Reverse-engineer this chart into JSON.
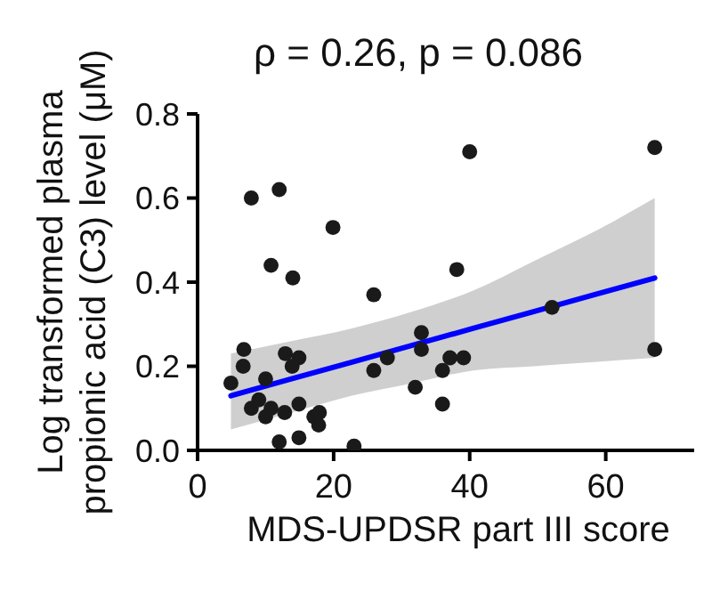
{
  "chart_data": {
    "type": "scatter",
    "title": "ρ = 0.26, p = 0.086",
    "xlabel": "MDS-UPDSR part III score",
    "ylabel": "Log transformed plasma propionic acid (C3) level (μM)",
    "xlim": [
      0,
      73
    ],
    "xticks": [
      0,
      20,
      40,
      60
    ],
    "ylim": [
      0,
      0.8
    ],
    "yticks": [
      {
        "value": 0,
        "label": "0.0"
      },
      {
        "value": 0.2,
        "label": "0.2"
      },
      {
        "value": 0.4,
        "label": "0.4"
      },
      {
        "value": 0.6,
        "label": "0.6"
      },
      {
        "value": 0.8,
        "label": "0.8"
      }
    ],
    "grid": false,
    "marker": "circle",
    "series": [
      {
        "color": "#1a1a1a",
        "x": [
          4.9,
          6.7,
          6.8,
          7.9,
          7.9,
          9.0,
          10.0,
          10.0,
          10.8,
          10.8,
          12.0,
          12.0,
          12.8,
          12.9,
          13.9,
          14.0,
          14.9,
          14.9,
          14.9,
          17.1,
          17.9,
          17.8,
          19.9,
          23.0,
          25.9,
          25.9,
          27.9,
          32.0,
          32.9,
          32.9,
          36.0,
          36.0,
          37.1,
          38.1,
          39.1,
          40.0,
          52.1,
          67.2,
          67.2
        ],
        "values": [
          0.16,
          0.2,
          0.24,
          0.6,
          0.1,
          0.12,
          0.17,
          0.08,
          0.44,
          0.1,
          0.62,
          0.02,
          0.09,
          0.23,
          0.2,
          0.41,
          0.22,
          0.11,
          0.03,
          0.08,
          0.09,
          0.06,
          0.53,
          0.01,
          0.37,
          0.19,
          0.22,
          0.15,
          0.28,
          0.24,
          0.19,
          0.11,
          0.22,
          0.43,
          0.22,
          0.71,
          0.34,
          0.72,
          0.24
        ]
      },
      {
        "type": "line",
        "color": "#0000ff",
        "marker": "none",
        "line_style": "solid",
        "x": [
          4.9,
          13.8,
          22.7,
          31.6,
          40.5,
          49.4,
          58.3,
          67.2
        ],
        "values": [
          0.13,
          0.17,
          0.21,
          0.25,
          0.29,
          0.33,
          0.37,
          0.41
        ],
        "lower": [
          0.05,
          0.09,
          0.13,
          0.16,
          0.19,
          0.2,
          0.21,
          0.22
        ],
        "upper": [
          0.23,
          0.26,
          0.29,
          0.33,
          0.38,
          0.45,
          0.52,
          0.6
        ]
      }
    ]
  }
}
